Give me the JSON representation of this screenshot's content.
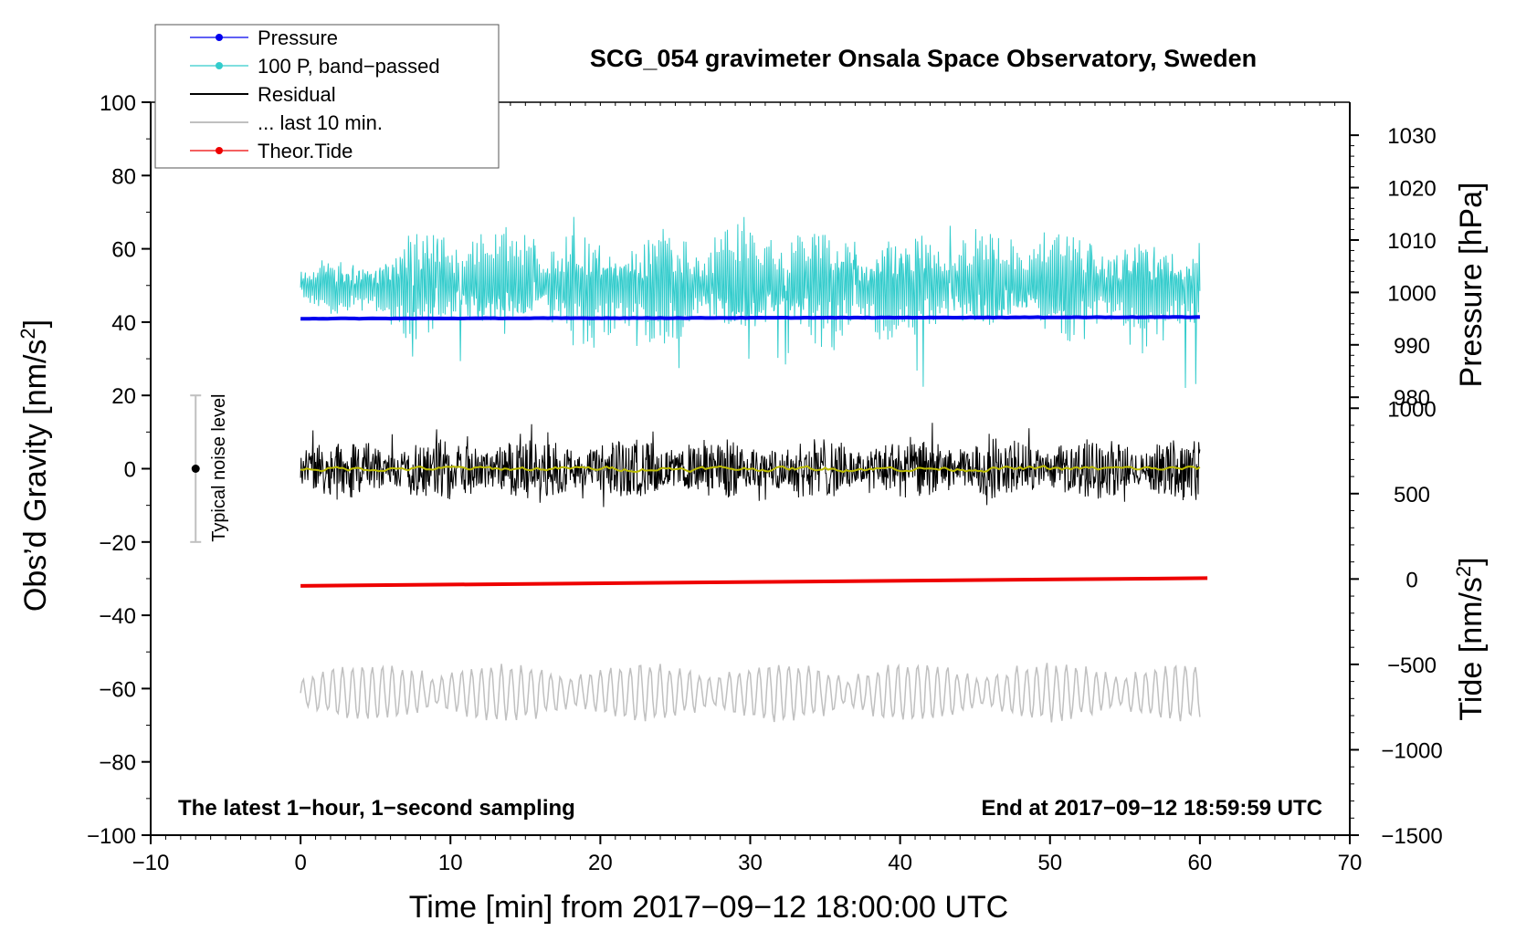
{
  "chart_data": {
    "type": "line",
    "title": "SCG_054 gravimeter Onsala Space Observatory, Sweden",
    "xlabel": "Time [min] from 2017−09−12 18:00:00 UTC",
    "ylabel_left": "Obs’d Gravity [nm/s²]",
    "ylabel_left_main": "Obs’d Gravity [nm/s",
    "ylabel_left_sup": "2",
    "ylabel_left_end": "]",
    "ylabel_right_top": "Pressure [hPa]",
    "ylabel_right_bottom": "Tide [nm/s²]",
    "ylabel_right_bottom_main": "Tide [nm/s",
    "ylabel_right_bottom_sup": "2",
    "ylabel_right_bottom_end": "]",
    "xlim": [
      -10,
      70
    ],
    "ylim_left": [
      -100,
      100
    ],
    "x_ticks": [
      -10,
      0,
      10,
      20,
      30,
      40,
      50,
      60,
      70
    ],
    "x_tick_labels": [
      "−10",
      "0",
      "10",
      "20",
      "30",
      "40",
      "50",
      "60",
      "70"
    ],
    "y_left_ticks": [
      -100,
      -80,
      -60,
      -40,
      -20,
      0,
      20,
      40,
      60,
      80,
      100
    ],
    "y_left_tick_labels": [
      "−100",
      "−80",
      "−60",
      "−40",
      "−20",
      "0",
      "20",
      "40",
      "60",
      "80",
      "100"
    ],
    "pressure_ticks": [
      980,
      990,
      1000,
      1010,
      1020,
      1030
    ],
    "pressure_tick_labels": [
      "980",
      "990",
      "1000",
      "1010",
      "1020",
      "1030"
    ],
    "pressure_axis_map": {
      "hpa": [
        980,
        1030
      ],
      "left_value": [
        19.5,
        91.0
      ]
    },
    "tide_ticks": [
      -1500,
      -1000,
      -500,
      0,
      500,
      1000
    ],
    "tide_tick_labels": [
      "−1500",
      "−1000",
      "−500",
      "0",
      "500",
      "1000"
    ],
    "tide_axis_map": {
      "nms2": [
        -1500,
        1000
      ],
      "left_value": [
        -100,
        16.5
      ]
    },
    "series": [
      {
        "name": "Pressure",
        "axis": "pressure",
        "x_range": [
          0,
          60
        ],
        "values_hpa": [
          995.0,
          995.3
        ]
      },
      {
        "name": "100 P, band−passed",
        "axis": "left",
        "x_range": [
          0,
          60
        ],
        "center": 50,
        "amplitude_range": [
          -28,
          19
        ]
      },
      {
        "name": "Residual",
        "axis": "left",
        "x_range": [
          0,
          60
        ],
        "center": 0,
        "amplitude_range": [
          -11,
          14
        ]
      },
      {
        "name": "Residual smoothed",
        "axis": "left",
        "x_range": [
          0,
          60
        ],
        "center": 0,
        "amplitude_range": [
          -2,
          2
        ]
      },
      {
        "name": "... last 10 min.",
        "axis": "left",
        "x_range": [
          0,
          60
        ],
        "center": -61,
        "amplitude_range": [
          -11,
          9
        ]
      },
      {
        "name": "Theor.Tide",
        "axis": "tide",
        "x_range": [
          0,
          60.5
        ],
        "values_nms2": [
          -40,
          5
        ]
      }
    ],
    "legend": {
      "placement": "top-left",
      "entries": [
        {
          "label": "Pressure",
          "color": "#0000ee",
          "marker": true
        },
        {
          "label": "100 P, band−passed",
          "color": "#33cccc",
          "marker": true
        },
        {
          "label": "Residual",
          "color": "#000000",
          "marker": false
        },
        {
          "label": "... last 10 min.",
          "color": "#c0c0c0",
          "marker": false
        },
        {
          "label": "Theor.Tide",
          "color": "#ee0000",
          "marker": true
        }
      ]
    },
    "noise_bar": {
      "label": "Typical noise level",
      "x": -7,
      "center": 0,
      "half_range": 20
    },
    "annotations": {
      "bottom_left": "The latest 1−hour, 1−second sampling",
      "bottom_right": "End at 2017−09−12 18:59:59 UTC"
    },
    "colors": {
      "pressure": "#0000ee",
      "band_passed": "#33cccc",
      "residual": "#000000",
      "smoothed": "#bbbb00",
      "last10": "#c0c0c0",
      "tide": "#ee0000",
      "noise_bar": "#c0c0c0"
    }
  }
}
